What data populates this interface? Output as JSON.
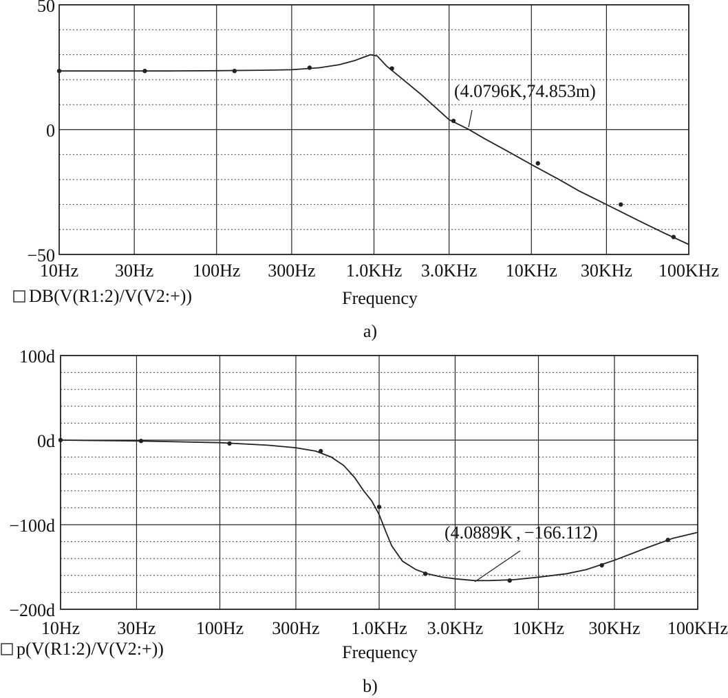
{
  "chart_data": [
    {
      "type": "line",
      "panel_label": "a)",
      "xlabel": "Frequency",
      "x_scale": "log",
      "xlim": [
        10,
        100000
      ],
      "x_ticks": [
        {
          "value": 10,
          "label": "10Hz"
        },
        {
          "value": 30,
          "label": "30Hz"
        },
        {
          "value": 100,
          "label": "100Hz"
        },
        {
          "value": 300,
          "label": "300Hz"
        },
        {
          "value": 1000,
          "label": "1.0KHz"
        },
        {
          "value": 3000,
          "label": "3.0KHz"
        },
        {
          "value": 10000,
          "label": "10KHz"
        },
        {
          "value": 30000,
          "label": "30KHz"
        },
        {
          "value": 100000,
          "label": "100KHz"
        }
      ],
      "ylim": [
        -50,
        50
      ],
      "y_ticks": [
        {
          "value": 50,
          "label": "50"
        },
        {
          "value": 0,
          "label": "0"
        },
        {
          "value": -50,
          "label": "−50"
        }
      ],
      "y_minor_ticks": [
        40,
        30,
        20,
        10,
        -10,
        -20,
        -30,
        -40
      ],
      "grid": true,
      "series": [
        {
          "name": "DB(V(R1:2)/V(V2:+))",
          "x": [
            10,
            20,
            50,
            100,
            200,
            300,
            450,
            600,
            750,
            850,
            950,
            1050,
            1200,
            1500,
            2000,
            3000,
            4000,
            5000,
            7000,
            10000,
            15000,
            20000,
            30000,
            50000,
            70000,
            100000
          ],
          "y": [
            23.5,
            23.5,
            23.5,
            23.6,
            23.8,
            24.0,
            24.8,
            26.0,
            27.6,
            28.9,
            30.0,
            29.5,
            25.5,
            20.5,
            14.0,
            4.0,
            0.07,
            -3.5,
            -8.5,
            -14.0,
            -20.0,
            -24.5,
            -30.0,
            -37.0,
            -41.5,
            -46.0
          ]
        }
      ],
      "marker_points": {
        "x": [
          10,
          35,
          130,
          390,
          1300,
          3200,
          11000,
          37000,
          80000
        ],
        "y": [
          23.5,
          23.5,
          23.5,
          24.8,
          24.5,
          3.5,
          -13.5,
          -30.0,
          -43.0
        ]
      },
      "annotation": {
        "text": "(4.0796K,74.853m)",
        "x": 4079.6,
        "y": 0.074853
      }
    },
    {
      "type": "line",
      "panel_label": "b)",
      "xlabel": "Frequency",
      "x_scale": "log",
      "xlim": [
        10,
        100000
      ],
      "x_ticks": [
        {
          "value": 10,
          "label": "10Hz"
        },
        {
          "value": 30,
          "label": "30Hz"
        },
        {
          "value": 100,
          "label": "100Hz"
        },
        {
          "value": 300,
          "label": "300Hz"
        },
        {
          "value": 1000,
          "label": "1.0KHz"
        },
        {
          "value": 3000,
          "label": "3.0KHz"
        },
        {
          "value": 10000,
          "label": "10KHz"
        },
        {
          "value": 30000,
          "label": "30KHz"
        },
        {
          "value": 100000,
          "label": "100KHz"
        }
      ],
      "ylim": [
        -200,
        100
      ],
      "y_ticks": [
        {
          "value": 100,
          "label": "100d"
        },
        {
          "value": 0,
          "label": "0d"
        },
        {
          "value": -100,
          "label": "−100d"
        },
        {
          "value": -200,
          "label": "−200d"
        }
      ],
      "y_minor_ticks": [
        80,
        60,
        40,
        20,
        -20,
        -40,
        -60,
        -80,
        -120,
        -140,
        -160,
        -180
      ],
      "grid": true,
      "series": [
        {
          "name": "p(V(R1:2)/V(V2:+))",
          "x": [
            10,
            30,
            100,
            200,
            300,
            400,
            500,
            600,
            700,
            800,
            900,
            1000,
            1100,
            1200,
            1400,
            1700,
            2000,
            2500,
            3000,
            4000,
            5000,
            7000,
            10000,
            15000,
            20000,
            30000,
            50000,
            70000,
            100000
          ],
          "y": [
            0,
            -1,
            -3,
            -6,
            -9,
            -13,
            -20,
            -30,
            -44,
            -60,
            -72,
            -88,
            -108,
            -125,
            -143,
            -153,
            -158,
            -162,
            -164,
            -166.1,
            -166,
            -165,
            -162,
            -158,
            -153,
            -142,
            -126,
            -116,
            -109
          ]
        }
      ],
      "marker_points": {
        "x": [
          10,
          32,
          115,
          430,
          1000,
          1950,
          6600,
          25000,
          65000
        ],
        "y": [
          0,
          -1,
          -4,
          -13,
          -79,
          -158,
          -166,
          -148,
          -118
        ]
      },
      "annotation": {
        "text": "(4.0889K , −166.112)",
        "x": 4088.9,
        "y": -166.112
      }
    }
  ]
}
